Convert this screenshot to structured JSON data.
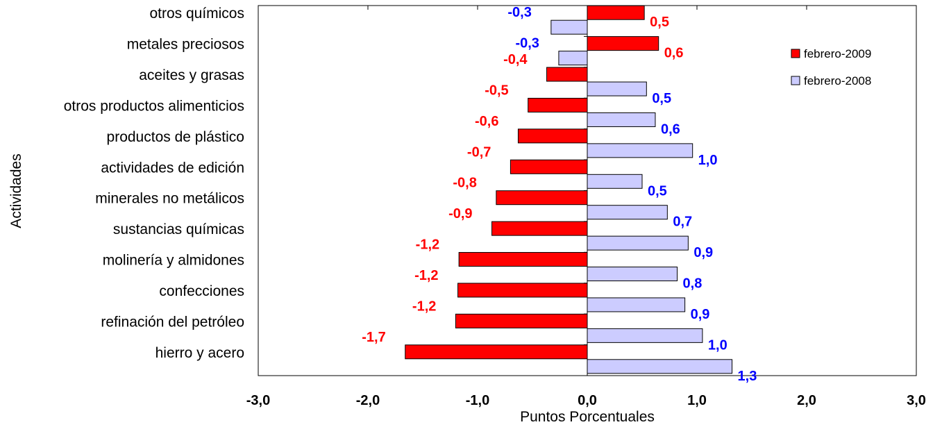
{
  "chart_data": {
    "type": "bar",
    "orientation": "horizontal",
    "categories": [
      "otros químicos",
      "metales preciosos",
      "aceites y grasas",
      "otros productos alimenticios",
      "productos de plástico",
      "actividades de edición",
      "minerales no metálicos",
      "sustancias químicas ",
      "molinería y almidones",
      "confecciones",
      "refinación del petróleo",
      "hierro y acero"
    ],
    "series": [
      {
        "name": "febrero-2009",
        "color": "#ff0000",
        "label_color": "#ff0000",
        "values": [
          0.52,
          0.65,
          -0.37,
          -0.54,
          -0.63,
          -0.7,
          -0.83,
          -0.87,
          -1.17,
          -1.18,
          -1.2,
          -1.66
        ],
        "labels": [
          "0,5",
          "0,6",
          "-0,4",
          "-0,5",
          "-0,6",
          "-0,7",
          "-0,8",
          "-0,9",
          "-1,2",
          "-1,2",
          "-1,2",
          "-1,7"
        ]
      },
      {
        "name": "febrero-2008",
        "color": "#ccccff",
        "label_color": "#0000ff",
        "values": [
          -0.33,
          -0.26,
          0.54,
          0.62,
          0.96,
          0.5,
          0.73,
          0.92,
          0.82,
          0.89,
          1.05,
          1.32
        ],
        "labels": [
          "-0,3",
          "-0,3",
          "0,5",
          "0,6",
          "1,0",
          "0,5",
          "0,7",
          "0,9",
          "0,8",
          "0,9",
          "1,0",
          "1,3"
        ]
      }
    ],
    "xlim": [
      -3.0,
      3.0
    ],
    "xticks": [
      "-3,0",
      "-2,0",
      "-1,0",
      "0,0",
      "1,0",
      "2,0",
      "3,0"
    ],
    "xlabel": "Puntos Porcentuales",
    "ylabel": "Actividades",
    "title": "",
    "grid": false,
    "legend_position": "top-right"
  }
}
